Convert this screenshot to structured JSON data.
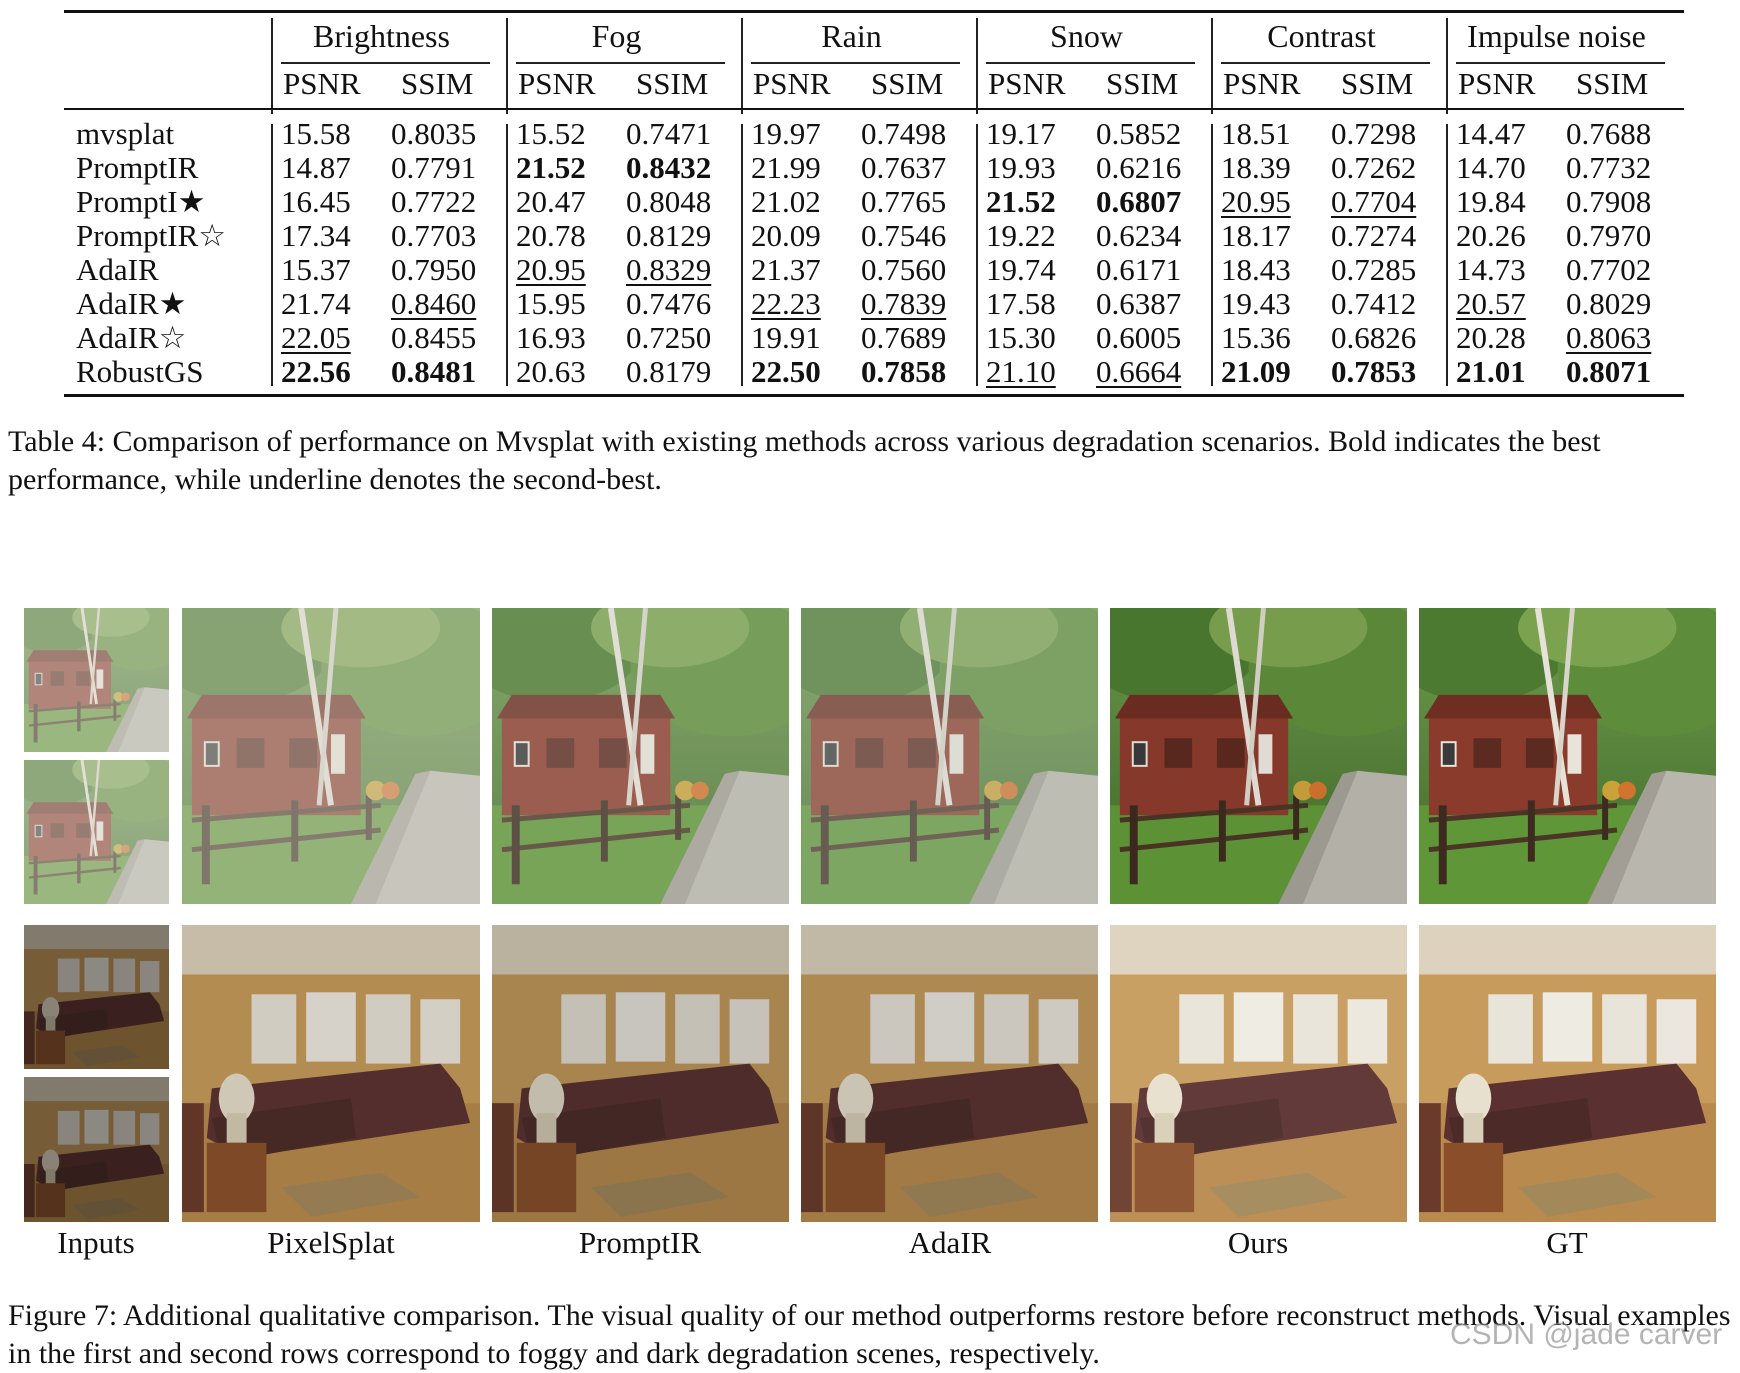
{
  "table": {
    "groups": [
      "Brightness",
      "Fog",
      "Rain",
      "Snow",
      "Contrast",
      "Impulse noise"
    ],
    "metrics": [
      "PSNR",
      "SSIM"
    ],
    "rows": [
      {
        "method": "mvsplat",
        "cells": [
          {
            "v": "15.58"
          },
          {
            "v": "0.8035"
          },
          {
            "v": "15.52"
          },
          {
            "v": "0.7471"
          },
          {
            "v": "19.97"
          },
          {
            "v": "0.7498"
          },
          {
            "v": "19.17"
          },
          {
            "v": "0.5852"
          },
          {
            "v": "18.51"
          },
          {
            "v": "0.7298"
          },
          {
            "v": "14.47"
          },
          {
            "v": "0.7688"
          }
        ]
      },
      {
        "method": "PromptIR",
        "cells": [
          {
            "v": "14.87"
          },
          {
            "v": "0.7791"
          },
          {
            "v": "21.52",
            "s": "bold"
          },
          {
            "v": "0.8432",
            "s": "bold"
          },
          {
            "v": "21.99"
          },
          {
            "v": "0.7637"
          },
          {
            "v": "19.93"
          },
          {
            "v": "0.6216"
          },
          {
            "v": "18.39"
          },
          {
            "v": "0.7262"
          },
          {
            "v": "14.70"
          },
          {
            "v": "0.7732"
          }
        ]
      },
      {
        "method": "PromptI★",
        "cells": [
          {
            "v": "16.45"
          },
          {
            "v": "0.7722"
          },
          {
            "v": "20.47"
          },
          {
            "v": "0.8048"
          },
          {
            "v": "21.02"
          },
          {
            "v": "0.7765"
          },
          {
            "v": "21.52",
            "s": "bold"
          },
          {
            "v": "0.6807",
            "s": "bold"
          },
          {
            "v": "20.95",
            "s": "underline"
          },
          {
            "v": "0.7704",
            "s": "underline"
          },
          {
            "v": "19.84"
          },
          {
            "v": "0.7908"
          }
        ]
      },
      {
        "method": "PromptIR☆",
        "cells": [
          {
            "v": "17.34"
          },
          {
            "v": "0.7703"
          },
          {
            "v": "20.78"
          },
          {
            "v": "0.8129"
          },
          {
            "v": "20.09"
          },
          {
            "v": "0.7546"
          },
          {
            "v": "19.22"
          },
          {
            "v": "0.6234"
          },
          {
            "v": "18.17"
          },
          {
            "v": "0.7274"
          },
          {
            "v": "20.26"
          },
          {
            "v": "0.7970"
          }
        ]
      },
      {
        "method": "AdaIR",
        "cells": [
          {
            "v": "15.37"
          },
          {
            "v": "0.7950"
          },
          {
            "v": "20.95",
            "s": "underline"
          },
          {
            "v": "0.8329",
            "s": "underline"
          },
          {
            "v": "21.37"
          },
          {
            "v": "0.7560"
          },
          {
            "v": "19.74"
          },
          {
            "v": "0.6171"
          },
          {
            "v": "18.43"
          },
          {
            "v": "0.7285"
          },
          {
            "v": "14.73"
          },
          {
            "v": "0.7702"
          }
        ]
      },
      {
        "method": "AdaIR★",
        "cells": [
          {
            "v": "21.74"
          },
          {
            "v": "0.8460",
            "s": "underline"
          },
          {
            "v": "15.95"
          },
          {
            "v": "0.7476"
          },
          {
            "v": "22.23",
            "s": "underline"
          },
          {
            "v": "0.7839",
            "s": "underline"
          },
          {
            "v": "17.58"
          },
          {
            "v": "0.6387"
          },
          {
            "v": "19.43"
          },
          {
            "v": "0.7412"
          },
          {
            "v": "20.57",
            "s": "underline"
          },
          {
            "v": "0.8029"
          }
        ]
      },
      {
        "method": "AdaIR☆",
        "cells": [
          {
            "v": "22.05",
            "s": "underline"
          },
          {
            "v": "0.8455"
          },
          {
            "v": "16.93"
          },
          {
            "v": "0.7250"
          },
          {
            "v": "19.91"
          },
          {
            "v": "0.7689"
          },
          {
            "v": "15.30"
          },
          {
            "v": "0.6005"
          },
          {
            "v": "15.36"
          },
          {
            "v": "0.6826"
          },
          {
            "v": "20.28"
          },
          {
            "v": "0.8063",
            "s": "underline"
          }
        ]
      },
      {
        "method": "RobustGS",
        "cells": [
          {
            "v": "22.56",
            "s": "bold"
          },
          {
            "v": "0.8481",
            "s": "bold"
          },
          {
            "v": "20.63"
          },
          {
            "v": "0.8179"
          },
          {
            "v": "22.50",
            "s": "bold"
          },
          {
            "v": "0.7858",
            "s": "bold"
          },
          {
            "v": "21.10",
            "s": "underline"
          },
          {
            "v": "0.6664",
            "s": "underline"
          },
          {
            "v": "21.09",
            "s": "bold"
          },
          {
            "v": "0.7853",
            "s": "bold"
          },
          {
            "v": "21.01",
            "s": "bold"
          },
          {
            "v": "0.8071",
            "s": "bold"
          }
        ]
      }
    ]
  },
  "table_caption": "Table 4: Comparison of performance on Mvsplat with existing methods across various degradation scenarios. Bold indicates the best performance, while underline denotes the second-best.",
  "figure": {
    "column_labels": [
      "Inputs",
      "PixelSplat",
      "PromptIR",
      "AdaIR",
      "Ours",
      "GT"
    ],
    "rows": [
      "foggy outdoor house scene",
      "dark indoor living room scene"
    ]
  },
  "figure_caption": "Figure 7: Additional qualitative comparison. The visual quality of our method outperforms restore before reconstruct methods. Visual examples in the first and second rows correspond to foggy and dark degradation scenes, respectively.",
  "watermark": "CSDN @jade carver",
  "colors": {
    "text": "#111111",
    "rule": "#111111",
    "background": "#ffffff"
  }
}
